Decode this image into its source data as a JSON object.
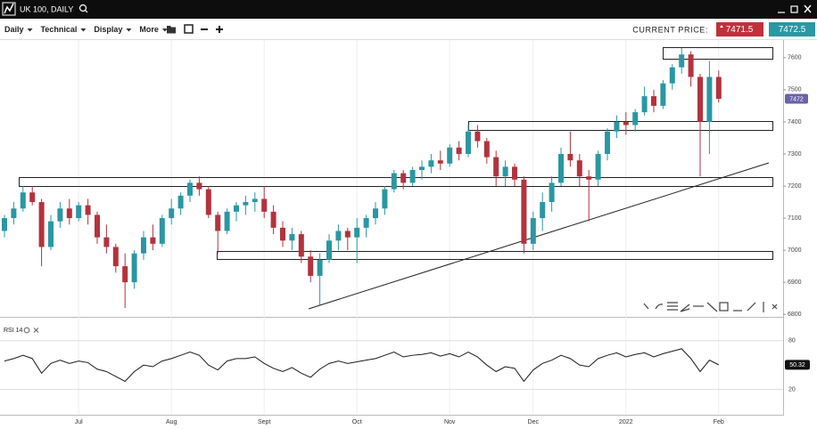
{
  "window": {
    "title": "UK 100, DAILY"
  },
  "toolbar": {
    "menus": [
      "Daily",
      "Technical",
      "Display",
      "More"
    ],
    "current_price_label": "CURRENT PRICE:",
    "sell_price": 7471.5,
    "buy_price": 7472.5
  },
  "chart_data": [
    {
      "type": "candlestick",
      "categories": [
        null,
        null,
        null,
        null,
        null,
        null,
        null,
        null,
        "Jul",
        null,
        null,
        null,
        null,
        null,
        null,
        null,
        null,
        null,
        "Aug",
        null,
        null,
        null,
        null,
        null,
        null,
        null,
        null,
        null,
        "Sept",
        null,
        null,
        null,
        null,
        null,
        null,
        null,
        null,
        null,
        "Oct",
        null,
        null,
        null,
        null,
        null,
        null,
        null,
        null,
        null,
        "Nov",
        null,
        null,
        null,
        null,
        null,
        null,
        null,
        null,
        "Dec",
        null,
        null,
        null,
        null,
        null,
        null,
        null,
        null,
        null,
        "2022",
        null,
        null,
        null,
        null,
        null,
        null,
        null,
        null,
        null,
        "Feb"
      ],
      "open": [
        7060,
        7100,
        7130,
        7180,
        7150,
        7010,
        7090,
        7130,
        7100,
        7140,
        7110,
        7040,
        7010,
        6950,
        6900,
        6990,
        7040,
        7020,
        7100,
        7130,
        7170,
        7210,
        7190,
        7110,
        7060,
        7120,
        7140,
        7150,
        7160,
        7120,
        7070,
        7030,
        7050,
        6980,
        6920,
        6970,
        7030,
        7060,
        7040,
        7070,
        7100,
        7130,
        7190,
        7240,
        7210,
        7250,
        7260,
        7280,
        7270,
        7320,
        7300,
        7370,
        7340,
        7290,
        7230,
        7260,
        7220,
        7020,
        7100,
        7150,
        7210,
        7300,
        7280,
        7230,
        7220,
        7300,
        7370,
        7400,
        7390,
        7430,
        7480,
        7450,
        7520,
        7570,
        7610,
        7540,
        7400,
        7540
      ],
      "high": [
        7110,
        7150,
        7200,
        7200,
        7160,
        7110,
        7150,
        7160,
        7150,
        7160,
        7120,
        7080,
        7020,
        6990,
        7000,
        7060,
        7080,
        7110,
        7160,
        7180,
        7220,
        7230,
        7200,
        7120,
        7130,
        7150,
        7170,
        7180,
        7200,
        7140,
        7090,
        7070,
        7060,
        7000,
        6990,
        7050,
        7080,
        7070,
        7100,
        7110,
        7150,
        7200,
        7250,
        7250,
        7260,
        7280,
        7300,
        7310,
        7330,
        7340,
        7390,
        7390,
        7350,
        7310,
        7280,
        7270,
        7230,
        7120,
        7180,
        7230,
        7320,
        7370,
        7300,
        7250,
        7310,
        7380,
        7420,
        7430,
        7440,
        7510,
        7500,
        7530,
        7580,
        7630,
        7620,
        7550,
        7590,
        7560
      ],
      "low": [
        7040,
        7080,
        7120,
        7140,
        6950,
        7000,
        7070,
        7080,
        7090,
        7080,
        7020,
        6990,
        6930,
        6820,
        6880,
        6970,
        7000,
        7010,
        7080,
        7110,
        7150,
        7170,
        7100,
        6990,
        7050,
        7090,
        7110,
        7120,
        7100,
        7050,
        7010,
        7000,
        6960,
        6900,
        6830,
        6960,
        7000,
        7000,
        6960,
        7040,
        7080,
        7110,
        7180,
        7190,
        7200,
        7220,
        7240,
        7250,
        7260,
        7280,
        7290,
        7320,
        7270,
        7200,
        7200,
        7200,
        6990,
        7000,
        7060,
        7120,
        7200,
        7260,
        7200,
        7090,
        7200,
        7280,
        7350,
        7360,
        7370,
        7420,
        7430,
        7440,
        7500,
        7550,
        7510,
        7230,
        7300,
        7460
      ],
      "close": [
        7100,
        7130,
        7180,
        7150,
        7010,
        7090,
        7130,
        7100,
        7140,
        7110,
        7040,
        7010,
        6950,
        6900,
        6990,
        7040,
        7020,
        7100,
        7130,
        7170,
        7210,
        7190,
        7110,
        7060,
        7120,
        7140,
        7150,
        7160,
        7120,
        7070,
        7030,
        7050,
        6980,
        6920,
        6970,
        7030,
        7060,
        7040,
        7070,
        7100,
        7130,
        7190,
        7240,
        7210,
        7250,
        7260,
        7280,
        7270,
        7320,
        7300,
        7370,
        7340,
        7290,
        7230,
        7260,
        7220,
        7020,
        7100,
        7150,
        7210,
        7300,
        7280,
        7230,
        7220,
        7300,
        7370,
        7400,
        7390,
        7430,
        7480,
        7450,
        7520,
        7570,
        7610,
        7540,
        7400,
        7540,
        7472
      ],
      "up_color": "#2a97a3",
      "down_color": "#b3323d",
      "tag_color": "#6b62a8",
      "ylim": [
        6795,
        7655
      ],
      "yticks": [
        6800,
        6900,
        7000,
        7100,
        7200,
        7300,
        7400,
        7500,
        7600
      ]
    },
    {
      "type": "line",
      "title": "RSI 14",
      "values": [
        55,
        58,
        62,
        58,
        40,
        52,
        56,
        52,
        55,
        53,
        45,
        42,
        36,
        30,
        42,
        50,
        48,
        55,
        58,
        62,
        66,
        62,
        50,
        44,
        55,
        58,
        58,
        60,
        52,
        46,
        42,
        47,
        40,
        35,
        45,
        52,
        55,
        52,
        54,
        56,
        58,
        62,
        66,
        60,
        62,
        63,
        65,
        61,
        64,
        60,
        66,
        60,
        50,
        42,
        48,
        46,
        30,
        44,
        52,
        56,
        62,
        58,
        50,
        48,
        58,
        62,
        65,
        60,
        63,
        65,
        60,
        64,
        67,
        70,
        58,
        42,
        56,
        50.32
      ],
      "color": "#1a1a1a",
      "ylim": [
        -11,
        107
      ],
      "yticks": [
        20,
        80
      ],
      "grid": true
    }
  ]
}
